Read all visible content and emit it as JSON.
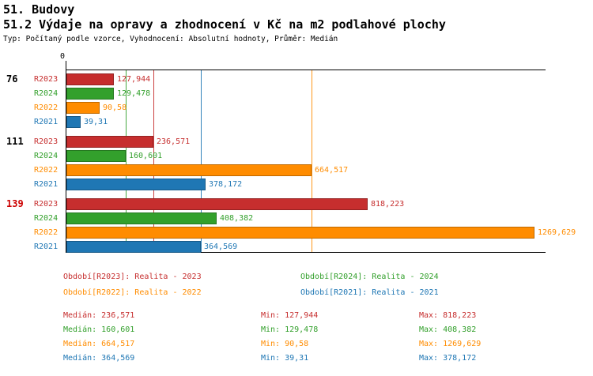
{
  "header": {
    "title": "51. Budovy",
    "subtitle": "51.2 Výdaje na opravy a zhodnocení v Kč na m2 podlahové plochy",
    "meta": "Typ: Počítaný podle vzorce, Vyhodnocení: Absolutní hodnoty, Průměr: Medián"
  },
  "colors": {
    "R2023": "#c62e2e",
    "R2024": "#33a02c",
    "R2022": "#ff8c00",
    "R2021": "#1f77b4",
    "highlight_group_label": "#cc0000",
    "axis": "#000000"
  },
  "chart_data": {
    "type": "bar",
    "orientation": "horizontal",
    "title": "51.2 Výdaje na opravy a zhodnocení v Kč na m2 podlahové plochy",
    "x_axis": {
      "min": 0,
      "max": 1302,
      "zero_label": "0"
    },
    "series_order": [
      "R2023",
      "R2024",
      "R2022",
      "R2021"
    ],
    "groups": [
      {
        "label": "76",
        "label_color": "#000000",
        "bars": [
          {
            "series": "R2023",
            "value": 127.944,
            "value_label": "127,944"
          },
          {
            "series": "R2024",
            "value": 129.478,
            "value_label": "129,478"
          },
          {
            "series": "R2022",
            "value": 90.58,
            "value_label": "90,58"
          },
          {
            "series": "R2021",
            "value": 39.31,
            "value_label": "39,31"
          }
        ]
      },
      {
        "label": "111",
        "label_color": "#000000",
        "bars": [
          {
            "series": "R2023",
            "value": 236.571,
            "value_label": "236,571"
          },
          {
            "series": "R2024",
            "value": 160.601,
            "value_label": "160,601"
          },
          {
            "series": "R2022",
            "value": 664.517,
            "value_label": "664,517"
          },
          {
            "series": "R2021",
            "value": 378.172,
            "value_label": "378,172"
          }
        ]
      },
      {
        "label": "139",
        "label_color": "#cc0000",
        "bars": [
          {
            "series": "R2023",
            "value": 818.223,
            "value_label": "818,223"
          },
          {
            "series": "R2024",
            "value": 408.382,
            "value_label": "408,382"
          },
          {
            "series": "R2022",
            "value": 1269.629,
            "value_label": "1269,629"
          },
          {
            "series": "R2021",
            "value": 364.569,
            "value_label": "364,569"
          }
        ]
      }
    ],
    "median_lines": {
      "R2023": 236.571,
      "R2024": 160.601,
      "R2022": 664.517,
      "R2021": 364.569
    },
    "legend": [
      {
        "series": "R2023",
        "label": "Období[R2023]: Realita - 2023"
      },
      {
        "series": "R2024",
        "label": "Období[R2024]: Realita - 2024"
      },
      {
        "series": "R2022",
        "label": "Období[R2022]: Realita - 2022"
      },
      {
        "series": "R2021",
        "label": "Období[R2021]: Realita - 2021"
      }
    ]
  },
  "stats": {
    "rows": [
      {
        "series": "R2023",
        "median_label": "Medián: 236,571",
        "min_label": "Min: 127,944",
        "max_label": "Max: 818,223"
      },
      {
        "series": "R2024",
        "median_label": "Medián: 160,601",
        "min_label": "Min: 129,478",
        "max_label": "Max: 408,382"
      },
      {
        "series": "R2022",
        "median_label": "Medián: 664,517",
        "min_label": "Min: 90,58",
        "max_label": "Max: 1269,629"
      },
      {
        "series": "R2021",
        "median_label": "Medián: 364,569",
        "min_label": "Min: 39,31",
        "max_label": "Max: 378,172"
      }
    ]
  }
}
